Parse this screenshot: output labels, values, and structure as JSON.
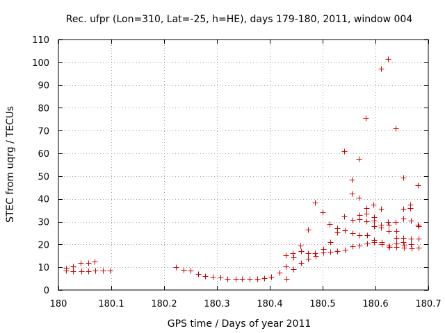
{
  "chart_data": {
    "type": "scatter",
    "title": "Rec. ufpr (Lon=310, Lat=-25, h=HE), days 179-180, 2011, window 004",
    "xlabel": "GPS time / Days of year 2011",
    "ylabel": "STEC from uqrg / TECUs",
    "xlim": [
      180,
      180.7
    ],
    "ylim": [
      0,
      110
    ],
    "xticks": [
      180,
      180.1,
      180.2,
      180.3,
      180.4,
      180.5,
      180.6,
      180.7
    ],
    "xtick_labels": [
      "180",
      "180.1",
      "180.2",
      "180.3",
      "180.4",
      "180.5",
      "180.6",
      "180.7"
    ],
    "yticks": [
      0,
      10,
      20,
      30,
      40,
      50,
      60,
      70,
      80,
      90,
      100,
      110
    ],
    "ytick_labels": [
      "0",
      "10",
      "20",
      "30",
      "40",
      "50",
      "60",
      "70",
      "80",
      "90",
      "100",
      "110"
    ],
    "grid": true,
    "marker": "+",
    "color": "#cc0000",
    "points": [
      [
        180.014,
        9.5
      ],
      [
        180.015,
        8.5
      ],
      [
        180.028,
        10.5
      ],
      [
        180.028,
        8.1
      ],
      [
        180.042,
        11.8
      ],
      [
        180.043,
        8.2
      ],
      [
        180.056,
        11.8
      ],
      [
        180.057,
        8.3
      ],
      [
        180.069,
        12.6
      ],
      [
        180.07,
        8.5
      ],
      [
        180.084,
        8.5
      ],
      [
        180.097,
        8.5
      ],
      [
        180.222,
        10.2
      ],
      [
        180.237,
        8.8
      ],
      [
        180.25,
        8.4
      ],
      [
        180.265,
        7.0
      ],
      [
        180.278,
        6.2
      ],
      [
        180.292,
        5.8
      ],
      [
        180.306,
        5.4
      ],
      [
        180.32,
        5.0
      ],
      [
        180.335,
        4.8
      ],
      [
        180.348,
        4.8
      ],
      [
        180.362,
        4.8
      ],
      [
        180.376,
        4.9
      ],
      [
        180.39,
        5.2
      ],
      [
        180.403,
        5.8
      ],
      [
        180.418,
        7.5
      ],
      [
        180.43,
        10.4
      ],
      [
        180.43,
        15.1
      ],
      [
        180.431,
        5.0
      ],
      [
        180.444,
        16.2
      ],
      [
        180.445,
        14.2
      ],
      [
        180.445,
        9.0
      ],
      [
        180.458,
        19.5
      ],
      [
        180.459,
        17.0
      ],
      [
        180.459,
        12.0
      ],
      [
        180.472,
        26.5
      ],
      [
        180.473,
        16.3
      ],
      [
        180.473,
        13.8
      ],
      [
        180.485,
        38.5
      ],
      [
        180.486,
        16.2
      ],
      [
        180.487,
        14.8
      ],
      [
        180.5,
        34.2
      ],
      [
        180.501,
        17.9
      ],
      [
        180.501,
        16.5
      ],
      [
        180.513,
        29.0
      ],
      [
        180.514,
        21.0
      ],
      [
        180.514,
        16.8
      ],
      [
        180.527,
        27.1
      ],
      [
        180.528,
        25.2
      ],
      [
        180.528,
        17.2
      ],
      [
        180.541,
        61.0
      ],
      [
        180.541,
        32.3
      ],
      [
        180.542,
        26.2
      ],
      [
        180.542,
        17.8
      ],
      [
        180.555,
        48.5
      ],
      [
        180.555,
        42.5
      ],
      [
        180.556,
        30.8
      ],
      [
        180.556,
        25.0
      ],
      [
        180.556,
        19.2
      ],
      [
        180.569,
        57.5
      ],
      [
        180.569,
        40.5
      ],
      [
        180.57,
        33.0
      ],
      [
        180.57,
        31.0
      ],
      [
        180.57,
        24.0
      ],
      [
        180.57,
        19.5
      ],
      [
        180.582,
        75.5
      ],
      [
        180.583,
        36.0
      ],
      [
        180.583,
        33.5
      ],
      [
        180.583,
        30.2
      ],
      [
        180.584,
        24.0
      ],
      [
        180.584,
        20.5
      ],
      [
        180.596,
        37.5
      ],
      [
        180.597,
        32.0
      ],
      [
        180.597,
        30.5
      ],
      [
        180.598,
        28.0
      ],
      [
        180.598,
        22.0
      ],
      [
        180.598,
        21.0
      ],
      [
        180.61,
        97.2
      ],
      [
        180.611,
        35.5
      ],
      [
        180.611,
        28.5
      ],
      [
        180.611,
        27.5
      ],
      [
        180.612,
        21.0
      ],
      [
        180.612,
        20.0
      ],
      [
        180.624,
        101.5
      ],
      [
        180.624,
        30.0
      ],
      [
        180.625,
        28.5
      ],
      [
        180.625,
        26.0
      ],
      [
        180.625,
        19.5
      ],
      [
        180.626,
        19.0
      ],
      [
        180.638,
        71.0
      ],
      [
        180.638,
        30.0
      ],
      [
        180.639,
        26.0
      ],
      [
        180.639,
        23.0
      ],
      [
        180.639,
        20.5
      ],
      [
        180.64,
        19.0
      ],
      [
        180.652,
        49.5
      ],
      [
        180.652,
        35.5
      ],
      [
        180.653,
        31.5
      ],
      [
        180.653,
        23.0
      ],
      [
        180.653,
        21.0
      ],
      [
        180.654,
        19.5
      ],
      [
        180.654,
        18.5
      ],
      [
        180.666,
        37.5
      ],
      [
        180.666,
        36.0
      ],
      [
        180.667,
        30.5
      ],
      [
        180.667,
        22.5
      ],
      [
        180.667,
        20.0
      ],
      [
        180.668,
        18.2
      ],
      [
        180.68,
        46.0
      ],
      [
        180.68,
        28.5
      ],
      [
        180.681,
        28.0
      ],
      [
        180.681,
        22.5
      ],
      [
        180.681,
        18.5
      ]
    ]
  }
}
